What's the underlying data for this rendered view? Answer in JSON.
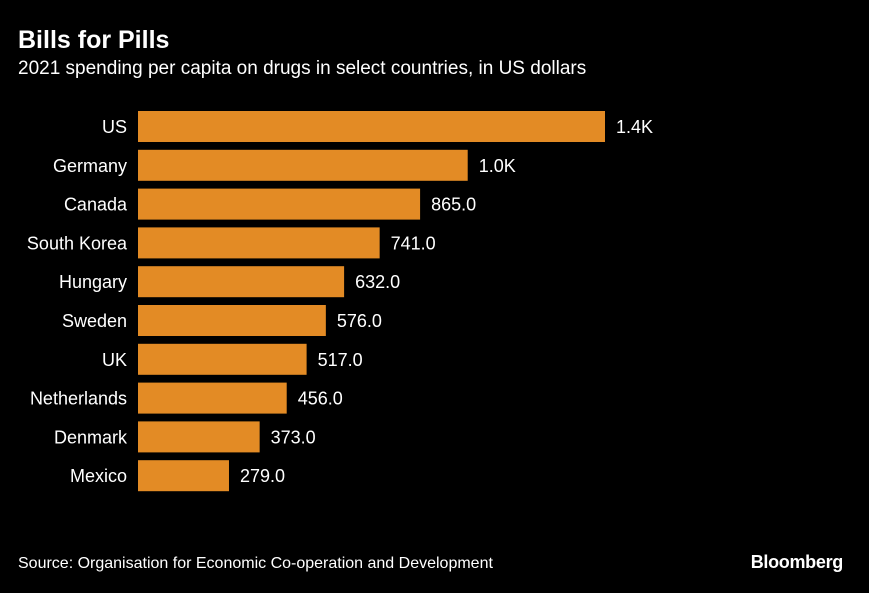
{
  "chart_data": {
    "type": "bar",
    "orientation": "horizontal",
    "title": "Bills for Pills",
    "subtitle": "2021 spending per capita on drugs in select countries, in US dollars",
    "categories": [
      "US",
      "Germany",
      "Canada",
      "South Korea",
      "Hungary",
      "Sweden",
      "UK",
      "Netherlands",
      "Denmark",
      "Mexico"
    ],
    "values": [
      1432,
      1011,
      865,
      741,
      632,
      576,
      517,
      456,
      373,
      279
    ],
    "value_labels": [
      "1.4K",
      "1.0K",
      "865.0",
      "741.0",
      "632.0",
      "576.0",
      "517.0",
      "456.0",
      "373.0",
      "279.0"
    ],
    "xlim": [
      0,
      1432
    ],
    "xlabel": "",
    "ylabel": "",
    "grid": false,
    "bar_color": "#e38b25"
  },
  "source": "Source: Organisation for Economic Co-operation and Development",
  "brand": "Bloomberg"
}
